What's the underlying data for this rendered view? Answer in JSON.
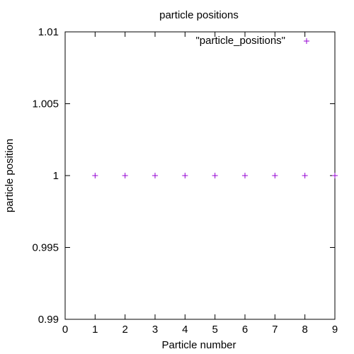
{
  "chart_data": {
    "type": "scatter",
    "title": "particle positions",
    "xlabel": "Particle number",
    "ylabel": "particle position",
    "xlim": [
      0,
      9
    ],
    "ylim": [
      0.99,
      1.01
    ],
    "x_ticks": [
      "0",
      "1",
      "2",
      "3",
      "4",
      "5",
      "6",
      "7",
      "8",
      "9"
    ],
    "y_ticks": [
      "0.99",
      "0.995",
      "1",
      "1.005",
      "1.01"
    ],
    "grid": false,
    "legend_position": "top-right",
    "series": [
      {
        "name": "\"particle_positions\"",
        "color": "#9400d3",
        "marker": "plus",
        "x": [
          1,
          2,
          3,
          4,
          5,
          6,
          7,
          8,
          9
        ],
        "y": [
          1,
          1,
          1,
          1,
          1,
          1,
          1,
          1,
          1
        ]
      }
    ]
  }
}
